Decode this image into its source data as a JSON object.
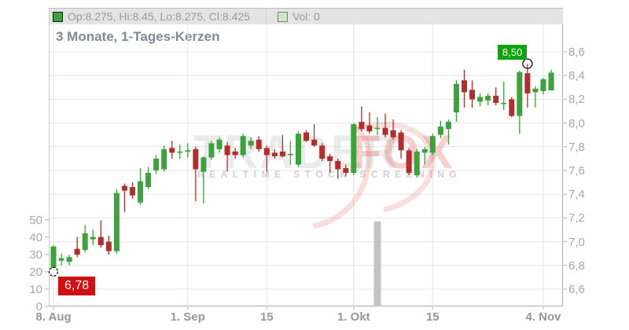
{
  "title": "3 Monate, 1-Tages-Kerzen",
  "legend": {
    "ohlc_text": "Op:8.275, Hi:8.45, Lo:8.275, Cl:8.425",
    "vol_text": "Vol: 0",
    "candle_swatch_color": "#3aa33a",
    "vol_swatch_color": "#cde9c6"
  },
  "watermark": {
    "part1": "TRADER",
    "part2": "FOX",
    "tagline": "REALTIME STOCK SCREENING"
  },
  "axes": {
    "price_ticks": [
      {
        "label": "8,6",
        "value": 8.6
      },
      {
        "label": "8,4",
        "value": 8.4
      },
      {
        "label": "8,2",
        "value": 8.2
      },
      {
        "label": "8,0",
        "value": 8.0
      },
      {
        "label": "7,8",
        "value": 7.8
      },
      {
        "label": "7,6",
        "value": 7.6
      },
      {
        "label": "7,4",
        "value": 7.4
      },
      {
        "label": "7,2",
        "value": 7.2
      },
      {
        "label": "7,0",
        "value": 7.0
      },
      {
        "label": "6,8",
        "value": 6.8
      },
      {
        "label": "6,6",
        "value": 6.6
      }
    ],
    "volume_ticks": [
      {
        "label": "50",
        "value": 50
      },
      {
        "label": "40",
        "value": 40
      },
      {
        "label": "30",
        "value": 30
      },
      {
        "label": "20",
        "value": 20
      },
      {
        "label": "10",
        "value": 10
      },
      {
        "label": "0",
        "value": 0
      }
    ],
    "x_ticks": [
      {
        "label": "8. Aug",
        "index": 0
      },
      {
        "label": "1. Sep",
        "index": 17
      },
      {
        "label": "15",
        "index": 27
      },
      {
        "label": "1. Okt",
        "index": 38
      },
      {
        "label": "15",
        "index": 48
      },
      {
        "label": "4. Nov",
        "index": 62
      }
    ]
  },
  "annotations": {
    "low": {
      "text": "6,78",
      "value": 6.78,
      "candle_index": 0
    },
    "high": {
      "text": "8,50",
      "value": 8.5,
      "candle_index": 60
    }
  },
  "chart_data": {
    "type": "candlestick",
    "title": "3 Monate, 1-Tages-Kerzen",
    "price_axis_range": [
      6.6,
      8.6
    ],
    "volume_axis_range": [
      0,
      50
    ],
    "grid": true,
    "period_low": 6.78,
    "period_high": 8.5,
    "last_candle": {
      "open": 8.275,
      "high": 8.45,
      "low": 8.275,
      "close": 8.425,
      "volume": 0
    },
    "colors": {
      "up": "#3aa33a",
      "down": "#b32d2d",
      "grid": "#e4e4e4",
      "tick": "#b0b0b0",
      "volume_bar": "#c3c3c3",
      "low_label_bg": "#cf1111",
      "high_label_bg": "#0ba50b"
    },
    "volume_bars": [
      {
        "candle_index": 41,
        "value": 49
      }
    ],
    "candles_ohlc": [
      [
        6.78,
        6.97,
        6.78,
        6.96
      ],
      [
        6.84,
        6.9,
        6.8,
        6.86
      ],
      [
        6.83,
        6.89,
        6.8,
        6.87
      ],
      [
        6.94,
        7.04,
        6.87,
        6.89
      ],
      [
        6.93,
        7.14,
        6.91,
        7.07
      ],
      [
        7.02,
        7.1,
        6.97,
        7.04
      ],
      [
        7.04,
        7.18,
        6.95,
        6.97
      ],
      [
        7.0,
        7.05,
        6.89,
        6.92
      ],
      [
        6.92,
        7.44,
        6.9,
        7.41
      ],
      [
        7.47,
        7.49,
        7.25,
        7.43
      ],
      [
        7.46,
        7.5,
        7.36,
        7.39
      ],
      [
        7.33,
        7.62,
        7.31,
        7.51
      ],
      [
        7.46,
        7.63,
        7.44,
        7.58
      ],
      [
        7.6,
        7.73,
        7.57,
        7.7
      ],
      [
        7.61,
        7.81,
        7.59,
        7.78
      ],
      [
        7.79,
        7.85,
        7.7,
        7.75
      ],
      [
        7.75,
        7.82,
        7.7,
        7.76
      ],
      [
        7.76,
        7.83,
        7.71,
        7.77
      ],
      [
        7.78,
        7.8,
        7.34,
        7.61
      ],
      [
        7.59,
        7.72,
        7.32,
        7.71
      ],
      [
        7.71,
        7.85,
        7.69,
        7.83
      ],
      [
        7.78,
        7.88,
        7.75,
        7.86
      ],
      [
        7.81,
        7.84,
        7.59,
        7.73
      ],
      [
        7.76,
        7.79,
        7.7,
        7.73
      ],
      [
        7.73,
        7.91,
        7.71,
        7.89
      ],
      [
        7.81,
        7.88,
        7.78,
        7.85
      ],
      [
        7.86,
        7.89,
        7.76,
        7.78
      ],
      [
        7.79,
        7.81,
        7.59,
        7.73
      ],
      [
        7.75,
        7.78,
        7.7,
        7.72
      ],
      [
        7.76,
        7.9,
        7.71,
        7.72
      ],
      [
        7.74,
        7.85,
        7.65,
        7.74
      ],
      [
        7.65,
        7.93,
        7.63,
        7.91
      ],
      [
        7.92,
        7.94,
        7.84,
        7.85
      ],
      [
        7.86,
        7.99,
        7.8,
        7.81
      ],
      [
        7.81,
        7.83,
        7.68,
        7.7
      ],
      [
        7.72,
        7.74,
        7.58,
        7.68
      ],
      [
        7.68,
        7.7,
        7.53,
        7.61
      ],
      [
        7.62,
        7.65,
        7.55,
        7.58
      ],
      [
        7.58,
        8.0,
        7.56,
        7.99
      ],
      [
        8.01,
        8.14,
        7.93,
        7.95
      ],
      [
        7.98,
        8.09,
        7.91,
        7.93
      ],
      [
        7.95,
        8.05,
        7.9,
        7.96
      ],
      [
        7.96,
        8.08,
        7.88,
        7.9
      ],
      [
        7.94,
        8.03,
        7.86,
        7.88
      ],
      [
        7.92,
        7.94,
        7.7,
        7.77
      ],
      [
        7.77,
        7.79,
        7.56,
        7.58
      ],
      [
        7.56,
        7.78,
        7.54,
        7.76
      ],
      [
        7.75,
        7.8,
        7.65,
        7.78
      ],
      [
        7.75,
        7.91,
        7.73,
        7.89
      ],
      [
        7.9,
        8.02,
        7.87,
        7.97
      ],
      [
        7.95,
        8.03,
        7.82,
        8.01
      ],
      [
        8.09,
        8.36,
        8.01,
        8.33
      ],
      [
        8.36,
        8.45,
        8.13,
        8.26
      ],
      [
        8.28,
        8.36,
        8.13,
        8.2
      ],
      [
        8.18,
        8.25,
        8.14,
        8.22
      ],
      [
        8.19,
        8.25,
        8.15,
        8.23
      ],
      [
        8.23,
        8.3,
        8.15,
        8.17
      ],
      [
        8.16,
        8.35,
        8.11,
        8.17
      ],
      [
        8.2,
        8.22,
        8.05,
        8.06
      ],
      [
        8.06,
        8.44,
        7.91,
        8.43
      ],
      [
        8.42,
        8.5,
        8.13,
        8.25
      ],
      [
        8.26,
        8.31,
        8.13,
        8.29
      ],
      [
        8.27,
        8.38,
        8.24,
        8.37
      ],
      [
        8.275,
        8.45,
        8.275,
        8.425
      ]
    ]
  }
}
